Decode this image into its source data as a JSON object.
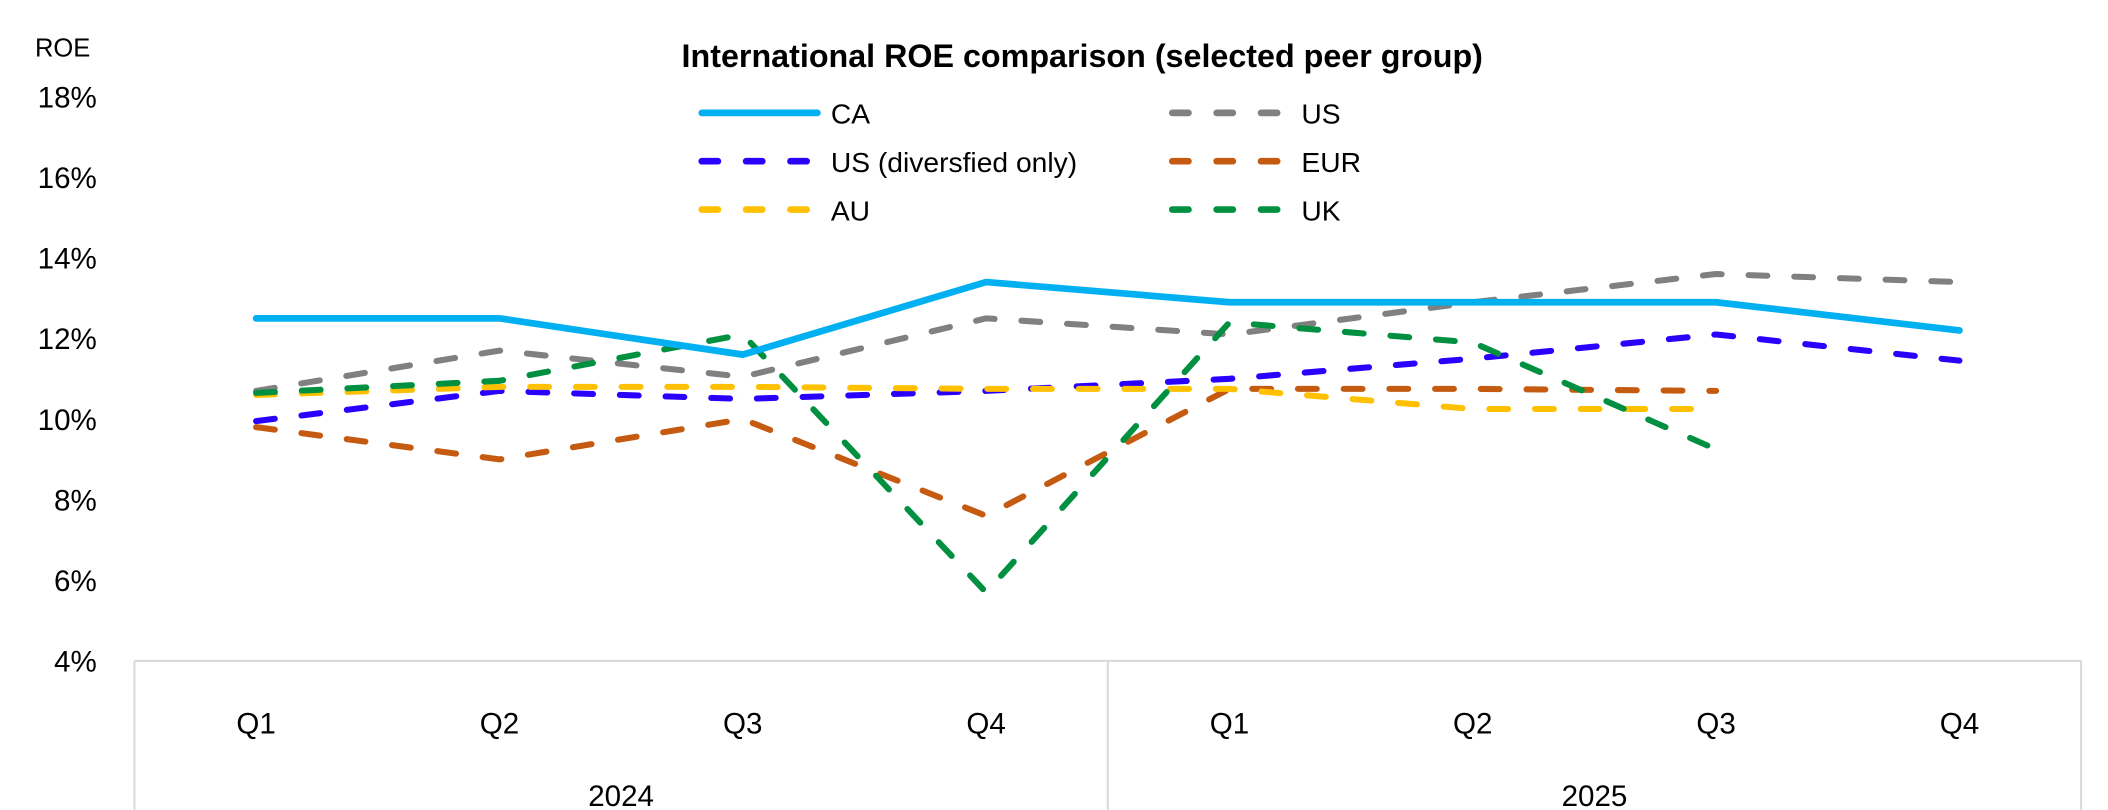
{
  "chart_data": {
    "type": "line",
    "title": "International ROE comparison (selected peer group)",
    "ylabel": "ROE",
    "xlabel": "",
    "ylim": [
      4,
      18
    ],
    "y_ticks": [
      "4%",
      "6%",
      "8%",
      "10%",
      "12%",
      "14%",
      "16%",
      "18%"
    ],
    "y_tick_values": [
      4,
      6,
      8,
      10,
      12,
      14,
      16,
      18
    ],
    "categories": [
      "Q1",
      "Q2",
      "Q3",
      "Q4",
      "Q1",
      "Q2",
      "Q3",
      "Q4"
    ],
    "groups": [
      {
        "label": "2024",
        "span": 4
      },
      {
        "label": "2025",
        "span": 4
      }
    ],
    "grid": false,
    "legend_position": "top",
    "series": [
      {
        "name": "CA",
        "color": "#00B0F0",
        "dash": "solid",
        "values": [
          12.5,
          12.5,
          11.6,
          13.4,
          12.9,
          12.9,
          12.9,
          12.2
        ]
      },
      {
        "name": "US",
        "color": "#808080",
        "dash": "dashed",
        "values": [
          10.7,
          11.7,
          11.05,
          12.5,
          12.1,
          12.9,
          13.6,
          13.4
        ]
      },
      {
        "name": "US (diversfied only)",
        "color": "#2A00FF",
        "dash": "dashed",
        "values": [
          9.95,
          10.7,
          10.5,
          10.7,
          11.0,
          11.5,
          12.1,
          11.45
        ]
      },
      {
        "name": "EUR",
        "color": "#C55A11",
        "dash": "dashed",
        "values": [
          9.8,
          9.0,
          10.0,
          7.6,
          10.75,
          10.75,
          10.7,
          null
        ]
      },
      {
        "name": "AU",
        "color": "#FFC000",
        "dash": "dashed",
        "values": [
          10.6,
          10.8,
          10.8,
          10.75,
          10.75,
          10.25,
          10.25,
          null
        ]
      },
      {
        "name": "UK",
        "color": "#009040",
        "dash": "dashed",
        "values": [
          10.65,
          10.95,
          12.1,
          5.7,
          12.4,
          11.9,
          9.25,
          null
        ]
      }
    ]
  }
}
